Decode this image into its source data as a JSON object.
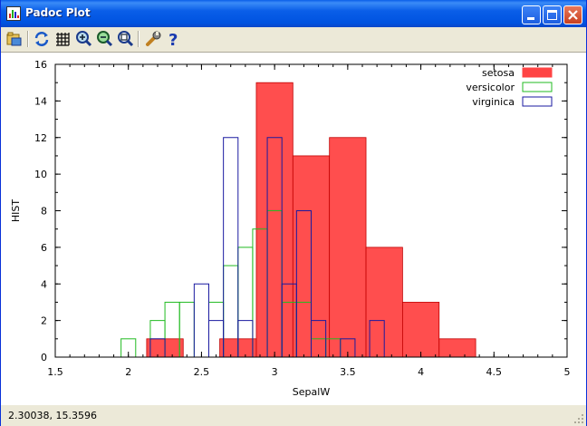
{
  "window": {
    "title": "Padoc Plot"
  },
  "toolbar": {
    "buttons": [
      "open-icon",
      "refresh-icon",
      "grid-icon",
      "zoom-in-icon",
      "zoom-out-icon",
      "zoom-fit-icon",
      "settings-icon",
      "help-icon"
    ]
  },
  "status": {
    "coords": "2.30038,  15.3596"
  },
  "colors": {
    "setosa": "#ff4444",
    "versicolor": "#22bb22",
    "virginica": "#1a1aa0"
  },
  "chart_data": {
    "type": "bar",
    "xlabel": "SepalW",
    "ylabel": "HIST",
    "xlim": [
      1.5,
      5
    ],
    "ylim": [
      0,
      16
    ],
    "xticks": [
      "1.5",
      "2",
      "2.5",
      "3",
      "3.5",
      "4",
      "4.5",
      "5"
    ],
    "yticks": [
      "0",
      "2",
      "4",
      "6",
      "8",
      "10",
      "12",
      "14",
      "16"
    ],
    "legend_position": "top-right",
    "series": [
      {
        "name": "setosa",
        "style": "filled",
        "color": "#ff4444",
        "bins": [
          {
            "x0": 2.125,
            "x1": 2.375,
            "y": 1
          },
          {
            "x0": 2.625,
            "x1": 2.875,
            "y": 1
          },
          {
            "x0": 2.875,
            "x1": 3.125,
            "y": 15
          },
          {
            "x0": 3.125,
            "x1": 3.375,
            "y": 11
          },
          {
            "x0": 3.375,
            "x1": 3.625,
            "y": 12
          },
          {
            "x0": 3.625,
            "x1": 3.875,
            "y": 6
          },
          {
            "x0": 3.875,
            "x1": 4.125,
            "y": 3
          },
          {
            "x0": 4.125,
            "x1": 4.375,
            "y": 1
          }
        ]
      },
      {
        "name": "versicolor",
        "style": "outline",
        "color": "#22bb22",
        "bins": [
          {
            "x0": 1.95,
            "x1": 2.05,
            "y": 1
          },
          {
            "x0": 2.15,
            "x1": 2.25,
            "y": 2
          },
          {
            "x0": 2.25,
            "x1": 2.35,
            "y": 3
          },
          {
            "x0": 2.35,
            "x1": 2.45,
            "y": 3
          },
          {
            "x0": 2.55,
            "x1": 2.65,
            "y": 3
          },
          {
            "x0": 2.65,
            "x1": 2.75,
            "y": 5
          },
          {
            "x0": 2.75,
            "x1": 2.85,
            "y": 6
          },
          {
            "x0": 2.85,
            "x1": 2.95,
            "y": 7
          },
          {
            "x0": 2.95,
            "x1": 3.05,
            "y": 8
          },
          {
            "x0": 3.05,
            "x1": 3.15,
            "y": 3
          },
          {
            "x0": 3.15,
            "x1": 3.25,
            "y": 3
          },
          {
            "x0": 3.25,
            "x1": 3.35,
            "y": 1
          },
          {
            "x0": 3.35,
            "x1": 3.45,
            "y": 1
          }
        ]
      },
      {
        "name": "virginica",
        "style": "outline",
        "color": "#1a1aa0",
        "bins": [
          {
            "x0": 2.15,
            "x1": 2.25,
            "y": 1
          },
          {
            "x0": 2.45,
            "x1": 2.55,
            "y": 4
          },
          {
            "x0": 2.55,
            "x1": 2.65,
            "y": 2
          },
          {
            "x0": 2.65,
            "x1": 2.75,
            "y": 12
          },
          {
            "x0": 2.75,
            "x1": 2.85,
            "y": 2
          },
          {
            "x0": 2.85,
            "x1": 2.95,
            "y": 0
          },
          {
            "x0": 2.95,
            "x1": 3.05,
            "y": 12
          },
          {
            "x0": 3.05,
            "x1": 3.15,
            "y": 4
          },
          {
            "x0": 3.15,
            "x1": 3.25,
            "y": 8
          },
          {
            "x0": 3.25,
            "x1": 3.35,
            "y": 2
          },
          {
            "x0": 3.35,
            "x1": 3.45,
            "y": 0
          },
          {
            "x0": 3.45,
            "x1": 3.55,
            "y": 1
          },
          {
            "x0": 3.65,
            "x1": 3.75,
            "y": 2
          }
        ]
      }
    ]
  }
}
